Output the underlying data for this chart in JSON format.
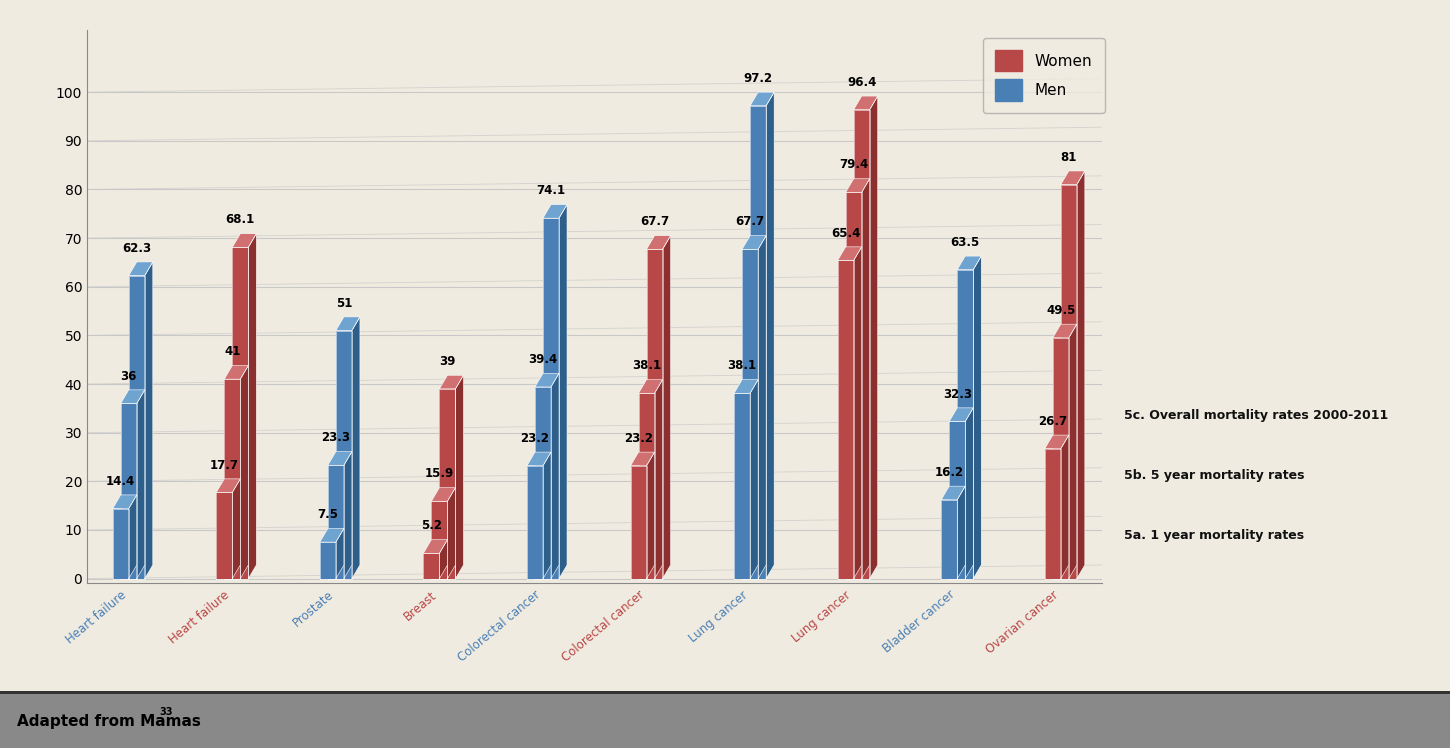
{
  "bar_data": [
    {
      "x_label": "Heart failure",
      "gender": "men",
      "v1": 14.4,
      "v5": 36,
      "vO": 62.3
    },
    {
      "x_label": "Heart failure",
      "gender": "women",
      "v1": 17.7,
      "v5": 41,
      "vO": 68.1
    },
    {
      "x_label": "Prostate",
      "gender": "men",
      "v1": 7.5,
      "v5": 23.3,
      "vO": 51
    },
    {
      "x_label": "Breast",
      "gender": "women",
      "v1": 5.2,
      "v5": 15.9,
      "vO": 39
    },
    {
      "x_label": "Colorectal cancer",
      "gender": "men",
      "v1": 23.2,
      "v5": 39.4,
      "vO": 74.1
    },
    {
      "x_label": "Colorectal cancer",
      "gender": "women",
      "v1": 23.2,
      "v5": 38.1,
      "vO": 67.7
    },
    {
      "x_label": "Lung cancer",
      "gender": "men",
      "v1": 38.1,
      "v5": 67.7,
      "vO": 97.2
    },
    {
      "x_label": "Lung cancer",
      "gender": "women",
      "v1": 65.4,
      "v5": 79.4,
      "vO": 96.4
    },
    {
      "x_label": "Bladder cancer",
      "gender": "men",
      "v1": 16.2,
      "v5": 32.3,
      "vO": 63.5
    },
    {
      "x_label": "Ovarian cancer",
      "gender": "women",
      "v1": 26.7,
      "v5": 49.5,
      "vO": 81
    }
  ],
  "xtick_labels": [
    "Heart failure",
    "Heart failure",
    "Prostate",
    "Breast",
    "Colorectal cancer",
    "Colorectal cancer",
    "Lung cancer",
    "Lung cancer",
    "Bladder cancer",
    "Ovarian cancer"
  ],
  "xtick_colors": [
    "#4a7fb5",
    "#b84747",
    "#4a7fb5",
    "#b84747",
    "#4a7fb5",
    "#b84747",
    "#4a7fb5",
    "#b84747",
    "#4a7fb5",
    "#b84747"
  ],
  "men_color_face": "#4a7fb5",
  "men_color_side": "#2d5f8a",
  "men_color_top": "#6fa3d0",
  "women_color_face": "#b84747",
  "women_color_side": "#8b2f2f",
  "women_color_top": "#d07070",
  "background_color": "#f0ebe0",
  "grid_color": "#c8c8c8",
  "yticks": [
    0,
    10,
    20,
    30,
    40,
    50,
    60,
    70,
    80,
    90,
    100
  ],
  "footer_text": "Adapted from Mamas",
  "footer_super": "33",
  "footer_bg": "#898989",
  "annotation_labels": [
    "5c. Overall mortality rates 2000-2011",
    "5b. 5 year mortality rates",
    "5a. 1 year mortality rates"
  ],
  "legend_women_color": "#b84747",
  "legend_men_color": "#4a7fb5"
}
